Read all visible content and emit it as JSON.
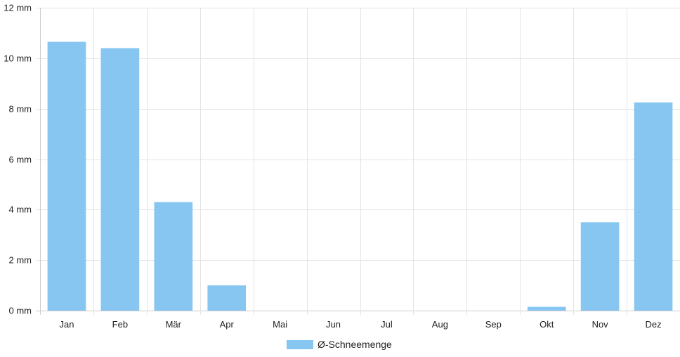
{
  "chart_data": {
    "type": "bar",
    "categories": [
      "Jan",
      "Feb",
      "Mär",
      "Apr",
      "Mai",
      "Jun",
      "Jul",
      "Aug",
      "Sep",
      "Okt",
      "Nov",
      "Dez"
    ],
    "series": [
      {
        "name": "Ø-Schneemenge",
        "values": [
          10.65,
          10.4,
          4.3,
          1.0,
          0,
          0,
          0,
          0,
          0,
          0.15,
          3.5,
          8.25
        ]
      }
    ],
    "unit": "mm",
    "y_ticks": [
      "0 mm",
      "2 mm",
      "4 mm",
      "6 mm",
      "8 mm",
      "10 mm",
      "12 mm"
    ],
    "ylim": [
      0,
      12
    ],
    "title": "",
    "xlabel": "",
    "ylabel": "",
    "grid": true,
    "legend_position": "bottom",
    "colors": {
      "bar": "#88C6F2",
      "grid": "#e4e4e4",
      "axis": "#cccccc"
    }
  }
}
